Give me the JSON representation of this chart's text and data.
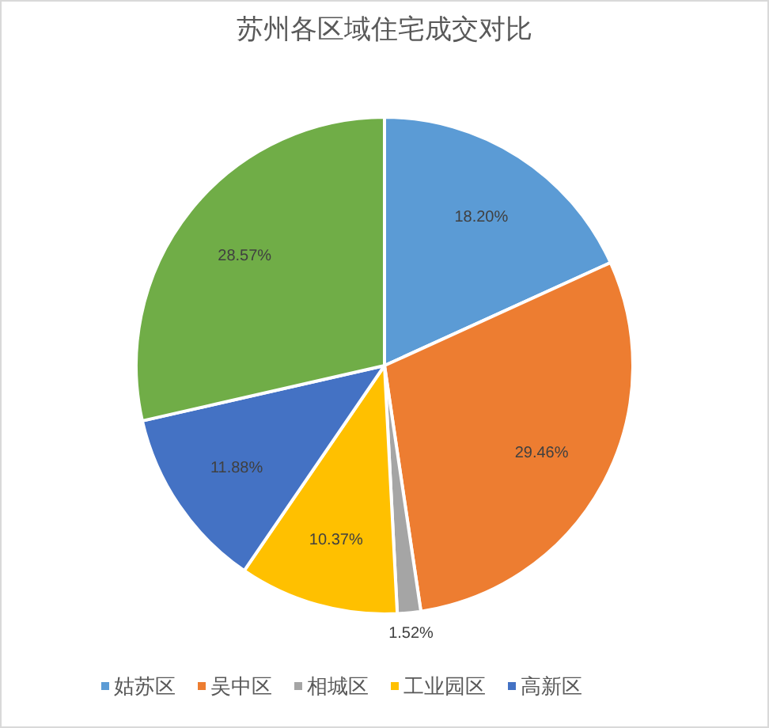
{
  "chart_data": {
    "type": "pie",
    "title": "苏州各区域住宅成交对比",
    "categories": [
      "姑苏区",
      "吴中区",
      "相城区",
      "工业园区",
      "高新区",
      null
    ],
    "values": [
      18.2,
      29.46,
      1.52,
      10.37,
      11.88,
      28.57
    ],
    "colors": [
      "#5b9bd5",
      "#ed7d31",
      "#a5a5a5",
      "#ffc000",
      "#4472c4",
      "#70ad47"
    ],
    "value_labels": [
      "18.20%",
      "29.46%",
      "1.52%",
      "10.37%",
      "11.88%",
      "28.57%"
    ],
    "legend": "bottom"
  }
}
